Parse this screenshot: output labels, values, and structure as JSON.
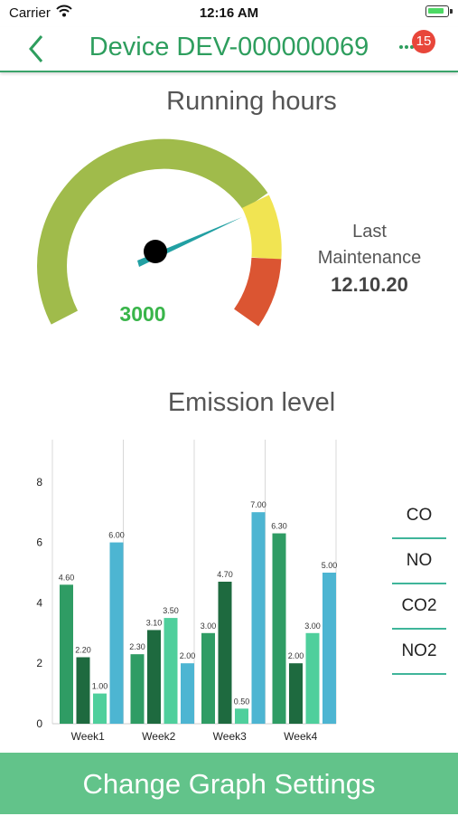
{
  "status_bar": {
    "carrier": "Carrier",
    "time": "12:16 AM"
  },
  "nav": {
    "title": "Device DEV-000000069",
    "badge_count": "15"
  },
  "running_hours": {
    "title": "Running hours",
    "value": "3000",
    "last_maintenance_label_1": "Last",
    "last_maintenance_label_2": "Maintenance",
    "last_maintenance_date": "12.10.20"
  },
  "emission": {
    "title": "Emission level",
    "legend": [
      "CO",
      "NO",
      "CO2",
      "NO2"
    ]
  },
  "colors": {
    "accent": "#2e9e5e",
    "button": "#62c38a",
    "gauge_green": "#a0bb4b",
    "gauge_yellow": "#f1e452",
    "gauge_red": "#db5532",
    "needle": "#22a0a3"
  },
  "chart_data": {
    "type": "bar",
    "categories": [
      "Week1",
      "Week2",
      "Week3",
      "Week4"
    ],
    "series": [
      {
        "name": "CO",
        "values": [
          4.6,
          2.3,
          3.0,
          6.3
        ],
        "color": "#2f9c64"
      },
      {
        "name": "NO",
        "values": [
          2.2,
          3.1,
          4.7,
          2.0
        ],
        "color": "#1e6a3f"
      },
      {
        "name": "CO2",
        "values": [
          1.0,
          3.5,
          0.5,
          3.0
        ],
        "color": "#4fcf9c"
      },
      {
        "name": "NO2",
        "values": [
          6.0,
          2.0,
          7.0,
          5.0
        ],
        "color": "#4db5d2"
      }
    ],
    "value_labels": [
      [
        "4.60",
        "2.20",
        "1.00",
        "6.00"
      ],
      [
        "2.30",
        "3.10",
        "3.50",
        "2.00"
      ],
      [
        "3.00",
        "4.70",
        "0.50",
        "7.00"
      ],
      [
        "6.30",
        "2.00",
        "3.00",
        "5.00"
      ]
    ],
    "yticks": [
      "0",
      "2",
      "4",
      "6",
      "8"
    ],
    "ylim": [
      0,
      9.4
    ],
    "grid": "vertical"
  },
  "footer": {
    "button_label": "Change Graph Settings"
  }
}
